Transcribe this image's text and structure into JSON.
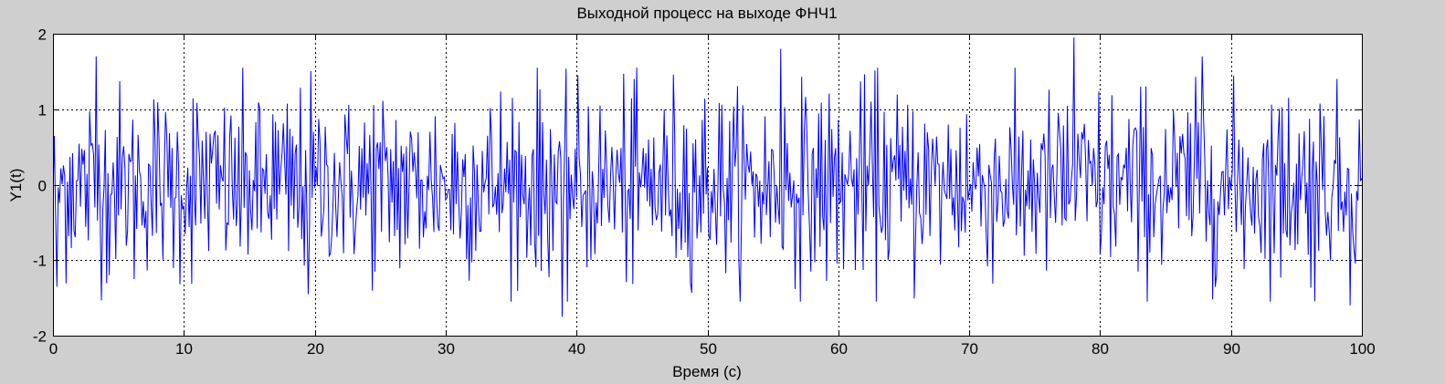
{
  "chart_data": {
    "type": "line",
    "title": "Выходной процесс на выходе ФНЧ1",
    "xlabel": "Время (с)",
    "ylabel": "Y1(t)",
    "xlim": [
      0,
      100
    ],
    "ylim": [
      -2,
      2
    ],
    "x_ticks": [
      0,
      10,
      20,
      30,
      40,
      50,
      60,
      70,
      80,
      90,
      100
    ],
    "x_tick_labels": [
      "0",
      "10",
      "20",
      "30",
      "40",
      "50",
      "60",
      "70",
      "80",
      "90",
      "100"
    ],
    "y_ticks": [
      -2,
      -1,
      0,
      1,
      2
    ],
    "y_tick_labels": [
      "-2",
      "-1",
      "0",
      "1",
      "2"
    ],
    "grid": true,
    "grid_style": "dotted",
    "series": [
      {
        "color": "#0000ff",
        "description_of_signal": "band-limited random noise, approx. zero mean, amplitude mostly within ±1, extremes about -1.75 and +1.95",
        "sample_count": 1000,
        "extremes": [
          {
            "x": 0.3,
            "y": -1.35
          },
          {
            "x": 3.3,
            "y": 1.7
          },
          {
            "x": 19.5,
            "y": -1.45
          },
          {
            "x": 38.9,
            "y": -1.75
          },
          {
            "x": 55.6,
            "y": 1.8
          },
          {
            "x": 78.0,
            "y": 1.95
          },
          {
            "x": 87.8,
            "y": 1.7
          },
          {
            "x": 99.1,
            "y": -1.6
          }
        ]
      }
    ]
  }
}
